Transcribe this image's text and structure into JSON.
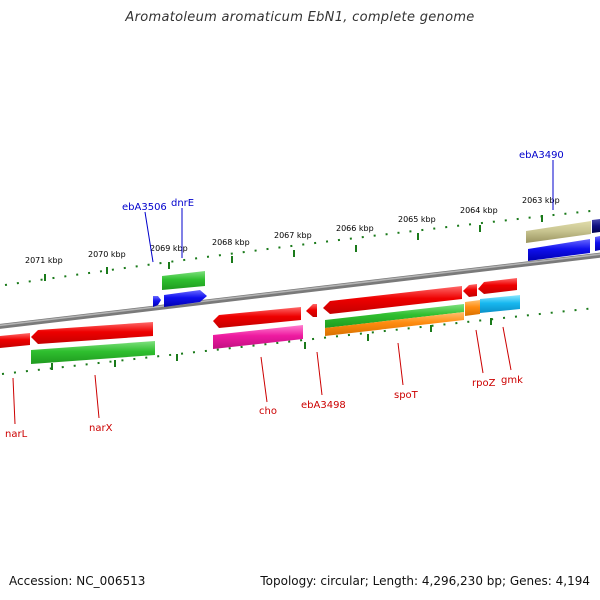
{
  "title": "Aromatoleum aromaticum EbN1, complete genome",
  "footer": {
    "accession": "Accession: NC_006513",
    "topology": "Topology: circular; Length: 4,296,230 bp; Genes: 4,194"
  },
  "colors": {
    "backbone": "#8a8a8a",
    "tick": "#1a7a1a",
    "label_forward": "#0000cc",
    "label_reverse": "#cc0000"
  },
  "ticks": [
    "2071 kbp",
    "2070 kbp",
    "2069 kbp",
    "2068 kbp",
    "2067 kbp",
    "2066 kbp",
    "2065 kbp",
    "2064 kbp",
    "2063 kbp"
  ],
  "gene_labels": [
    {
      "text": "ebA3490",
      "strand": "forward"
    },
    {
      "text": "ebA3506",
      "strand": "forward"
    },
    {
      "text": "dnrE",
      "strand": "forward"
    },
    {
      "text": "narL",
      "strand": "reverse"
    },
    {
      "text": "narX",
      "strand": "reverse"
    },
    {
      "text": "cho",
      "strand": "reverse"
    },
    {
      "text": "ebA3498",
      "strand": "reverse"
    },
    {
      "text": "spoT",
      "strand": "reverse"
    },
    {
      "text": "rpoZ",
      "strand": "reverse"
    },
    {
      "text": "gmk",
      "strand": "reverse"
    }
  ]
}
